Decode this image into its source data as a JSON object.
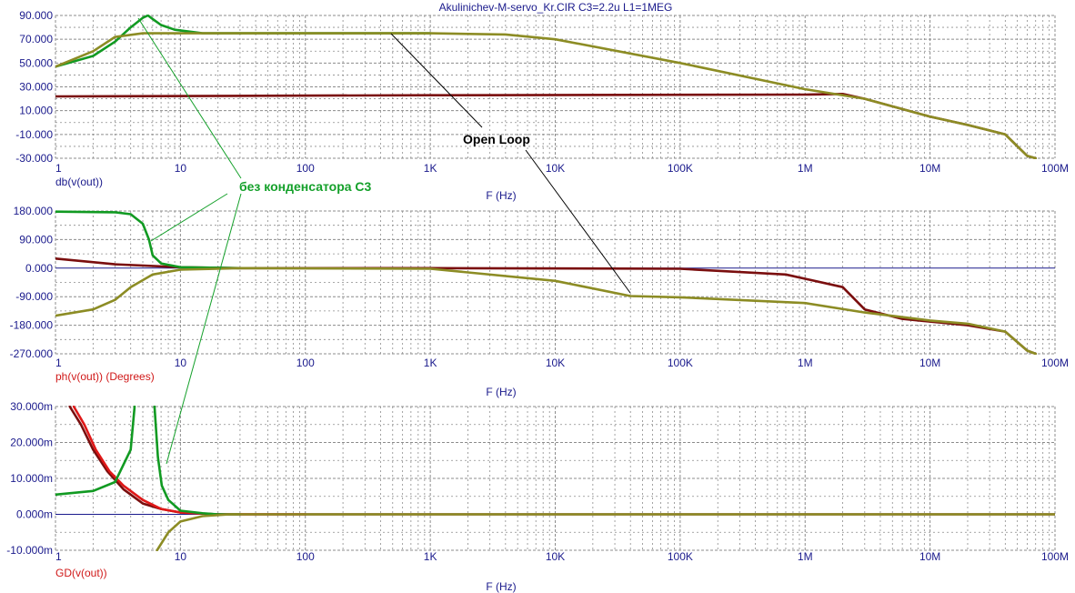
{
  "title": "Akulinichev-M-servo_Kr.CIR C3=2.2u L1=1MEG",
  "colors": {
    "axis_text": "#1a1a8c",
    "grid": "#8c8c8c",
    "zero_line": "#1a1a8c",
    "dark_red": "#7a0e0e",
    "red": "#e01818",
    "green": "#119a22",
    "olive": "#8c8c24",
    "annotation_green": "#14a02a",
    "annotation_black": "#000000"
  },
  "x_axis": {
    "scale": "log",
    "range": [
      1,
      100000000
    ],
    "tick_labels": [
      "1",
      "10",
      "100",
      "1K",
      "10K",
      "100K",
      "1M",
      "10M",
      "100M"
    ],
    "label": "F (Hz)"
  },
  "annotations": {
    "open_loop": "Open Loop",
    "no_cap": "без конденсатора C3"
  },
  "chart_data": [
    {
      "type": "line",
      "ylabel": "db(v(out))",
      "ylim": [
        -30,
        90
      ],
      "y_ticks": [
        90,
        70,
        50,
        30,
        10,
        -10,
        -30
      ],
      "y_tick_labels": [
        "90.000",
        "70.000",
        "50.000",
        "30.000",
        "10.000",
        "-10.000",
        "-30.000"
      ],
      "grid": true,
      "series": [
        {
          "color": "dark_red",
          "points": [
            [
              1,
              22
            ],
            [
              1000,
              23
            ],
            [
              1000000,
              23.5
            ],
            [
              2000000,
              24
            ],
            [
              3000000,
              20
            ],
            [
              10000000,
              5
            ],
            [
              20000000,
              -2
            ],
            [
              40000000,
              -10
            ],
            [
              60000000,
              -28
            ],
            [
              70000000,
              -30
            ]
          ]
        },
        {
          "color": "green",
          "points": [
            [
              1,
              47
            ],
            [
              2,
              56
            ],
            [
              3,
              68
            ],
            [
              4,
              80
            ],
            [
              5,
              88
            ],
            [
              5.5,
              90
            ],
            [
              6,
              87
            ],
            [
              7,
              82
            ],
            [
              9,
              78
            ],
            [
              15,
              75
            ],
            [
              1000,
              75
            ]
          ]
        },
        {
          "color": "olive",
          "points": [
            [
              1,
              47
            ],
            [
              2,
              60
            ],
            [
              3,
              72
            ],
            [
              5,
              75
            ],
            [
              100,
              75
            ],
            [
              1000,
              75
            ],
            [
              4000,
              74
            ],
            [
              10000,
              70
            ],
            [
              100000,
              50
            ],
            [
              1000000,
              28
            ],
            [
              3000000,
              20
            ],
            [
              10000000,
              5
            ],
            [
              20000000,
              -2
            ],
            [
              40000000,
              -10
            ],
            [
              60000000,
              -28
            ],
            [
              70000000,
              -30
            ]
          ]
        }
      ]
    },
    {
      "type": "line",
      "ylabel": "ph(v(out)) (Degrees)",
      "ylim": [
        -270,
        180
      ],
      "y_ticks": [
        180,
        90,
        0,
        -90,
        -180,
        -270
      ],
      "y_tick_labels": [
        "180.000",
        "90.000",
        "0.000",
        "-90.000",
        "-180.000",
        "-270.000"
      ],
      "grid": true,
      "series": [
        {
          "color": "dark_red",
          "points": [
            [
              1,
              30
            ],
            [
              3,
              12
            ],
            [
              10,
              3
            ],
            [
              30,
              0
            ],
            [
              1000,
              0
            ],
            [
              100000,
              -2
            ],
            [
              700000,
              -20
            ],
            [
              2000000,
              -60
            ],
            [
              3000000,
              -130
            ],
            [
              6000000,
              -160
            ],
            [
              20000000,
              -180
            ],
            [
              40000000,
              -200
            ],
            [
              60000000,
              -260
            ],
            [
              70000000,
              -270
            ]
          ]
        },
        {
          "color": "green",
          "points": [
            [
              1,
              178
            ],
            [
              3,
              176
            ],
            [
              4,
              170
            ],
            [
              5,
              140
            ],
            [
              5.6,
              90
            ],
            [
              6,
              40
            ],
            [
              7,
              15
            ],
            [
              10,
              3
            ],
            [
              30,
              0
            ]
          ]
        },
        {
          "color": "olive",
          "points": [
            [
              1,
              -150
            ],
            [
              2,
              -130
            ],
            [
              3,
              -100
            ],
            [
              4,
              -60
            ],
            [
              6,
              -20
            ],
            [
              10,
              -5
            ],
            [
              30,
              0
            ],
            [
              1000,
              -2
            ],
            [
              10000,
              -40
            ],
            [
              40000,
              -88
            ],
            [
              100000,
              -92
            ],
            [
              1000000,
              -110
            ],
            [
              3000000,
              -140
            ],
            [
              10000000,
              -165
            ],
            [
              20000000,
              -175
            ],
            [
              40000000,
              -200
            ],
            [
              60000000,
              -260
            ],
            [
              70000000,
              -270
            ]
          ]
        }
      ]
    },
    {
      "type": "line",
      "ylabel": "GD(v(out))",
      "ylim": [
        -0.01,
        0.03
      ],
      "y_ticks": [
        0.03,
        0.02,
        0.01,
        0,
        -0.01
      ],
      "y_tick_labels": [
        "30.000m",
        "20.000m",
        "10.000m",
        "0.000m",
        "-10.000m"
      ],
      "grid": true,
      "series": [
        {
          "color": "dark_red",
          "points": [
            [
              1.3,
              0.03
            ],
            [
              1.6,
              0.025
            ],
            [
              2,
              0.018
            ],
            [
              2.6,
              0.012
            ],
            [
              3.5,
              0.007
            ],
            [
              5,
              0.003
            ],
            [
              7,
              0.0015
            ],
            [
              10,
              0.0005
            ],
            [
              20,
              0
            ],
            [
              1000,
              0
            ],
            [
              100000000,
              0
            ]
          ]
        },
        {
          "color": "red",
          "points": [
            [
              1.4,
              0.03
            ],
            [
              1.7,
              0.025
            ],
            [
              2.1,
              0.018
            ],
            [
              2.7,
              0.012
            ],
            [
              3.5,
              0.008
            ],
            [
              5,
              0.004
            ],
            [
              7,
              0.0015
            ],
            [
              10,
              0.0005
            ],
            [
              20,
              0
            ],
            [
              100,
              0
            ]
          ]
        },
        {
          "color": "green",
          "points": [
            [
              1,
              0.0055
            ],
            [
              2,
              0.0065
            ],
            [
              3,
              0.009
            ],
            [
              4,
              0.018
            ],
            [
              4.3,
              0.03
            ]
          ]
        },
        {
          "color": "green",
          "points": [
            [
              6.2,
              0.03
            ],
            [
              6.6,
              0.016
            ],
            [
              7.1,
              0.008
            ],
            [
              8,
              0.004
            ],
            [
              10,
              0.001
            ],
            [
              15,
              0.0003
            ],
            [
              20,
              0
            ],
            [
              30,
              0
            ]
          ]
        },
        {
          "color": "olive",
          "points": [
            [
              6.5,
              -0.01
            ],
            [
              8,
              -0.005
            ],
            [
              10,
              -0.002
            ],
            [
              15,
              -0.0005
            ],
            [
              25,
              0
            ],
            [
              1000,
              0
            ],
            [
              100000000,
              0
            ]
          ]
        }
      ]
    }
  ]
}
